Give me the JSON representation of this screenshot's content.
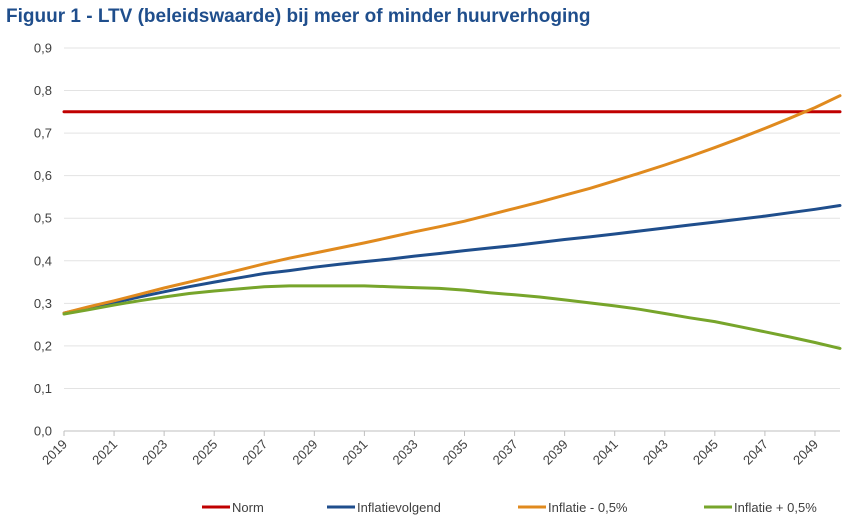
{
  "title": "Figuur 1 - LTV (beleidswaarde) bij meer of minder huurverhoging",
  "chart_data": {
    "type": "line",
    "title": "Figuur 1 - LTV (beleidswaarde) bij meer of minder huurverhoging",
    "xlabel": "",
    "ylabel": "",
    "x": [
      2019,
      2020,
      2021,
      2022,
      2023,
      2024,
      2025,
      2026,
      2027,
      2028,
      2029,
      2030,
      2031,
      2032,
      2033,
      2034,
      2035,
      2036,
      2037,
      2038,
      2039,
      2040,
      2041,
      2042,
      2043,
      2044,
      2045,
      2046,
      2047,
      2048,
      2049,
      2050
    ],
    "x_tick_labels": [
      "2019",
      "2021",
      "2023",
      "2025",
      "2027",
      "2029",
      "2031",
      "2033",
      "2035",
      "2037",
      "2039",
      "2041",
      "2043",
      "2045",
      "2047",
      "2049"
    ],
    "y_tick_labels": [
      "0,0",
      "0,1",
      "0,2",
      "0,3",
      "0,4",
      "0,5",
      "0,6",
      "0,7",
      "0,8",
      "0,9"
    ],
    "ylim": [
      0,
      0.9
    ],
    "grid": true,
    "legend_position": "bottom",
    "series": [
      {
        "name": "Norm",
        "color": "#c00000",
        "values": [
          0.75,
          0.75,
          0.75,
          0.75,
          0.75,
          0.75,
          0.75,
          0.75,
          0.75,
          0.75,
          0.75,
          0.75,
          0.75,
          0.75,
          0.75,
          0.75,
          0.75,
          0.75,
          0.75,
          0.75,
          0.75,
          0.75,
          0.75,
          0.75,
          0.75,
          0.75,
          0.75,
          0.75,
          0.75,
          0.75,
          0.75,
          0.75
        ]
      },
      {
        "name": "Inflatievolgend",
        "color": "#1f4e8c",
        "values": [
          0.277,
          0.29,
          0.302,
          0.315,
          0.327,
          0.339,
          0.35,
          0.36,
          0.37,
          0.377,
          0.385,
          0.392,
          0.398,
          0.404,
          0.411,
          0.417,
          0.424,
          0.43,
          0.436,
          0.443,
          0.45,
          0.456,
          0.463,
          0.47,
          0.477,
          0.484,
          0.491,
          0.498,
          0.505,
          0.513,
          0.521,
          0.53
        ]
      },
      {
        "name": "Inflatie - 0,5%",
        "color": "#e08a1e",
        "values": [
          0.277,
          0.292,
          0.306,
          0.321,
          0.336,
          0.35,
          0.364,
          0.378,
          0.393,
          0.406,
          0.418,
          0.43,
          0.442,
          0.455,
          0.468,
          0.48,
          0.493,
          0.508,
          0.523,
          0.538,
          0.554,
          0.57,
          0.588,
          0.606,
          0.625,
          0.645,
          0.666,
          0.688,
          0.711,
          0.735,
          0.76,
          0.788
        ]
      },
      {
        "name": "Inflatie + 0,5%",
        "color": "#77a52b",
        "values": [
          0.275,
          0.285,
          0.296,
          0.306,
          0.315,
          0.323,
          0.329,
          0.334,
          0.339,
          0.341,
          0.341,
          0.341,
          0.341,
          0.339,
          0.337,
          0.335,
          0.331,
          0.325,
          0.32,
          0.315,
          0.308,
          0.301,
          0.294,
          0.286,
          0.276,
          0.266,
          0.257,
          0.245,
          0.233,
          0.221,
          0.208,
          0.194
        ]
      }
    ]
  }
}
